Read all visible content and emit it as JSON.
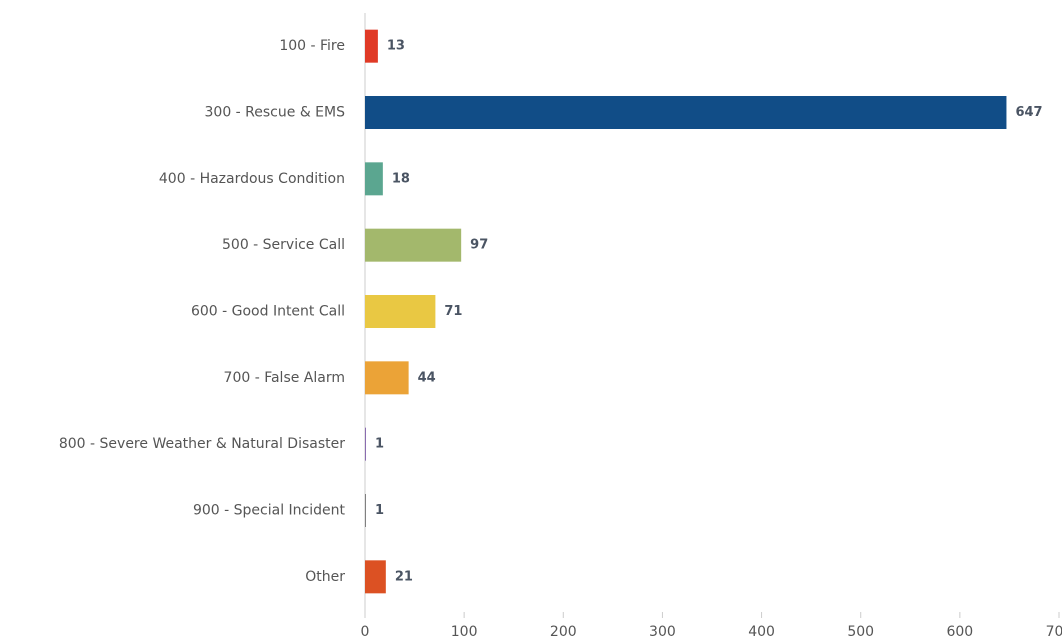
{
  "chart_data": {
    "type": "bar",
    "orientation": "horizontal",
    "categories": [
      "100 - Fire",
      "300 - Rescue & EMS",
      "400 - Hazardous Condition",
      "500 - Service Call",
      "600 - Good Intent Call",
      "700 - False Alarm",
      "800 - Severe Weather & Natural Disaster",
      "900 - Special Incident",
      "Other"
    ],
    "values": [
      13,
      647,
      18,
      97,
      71,
      44,
      1,
      1,
      21
    ],
    "colors": [
      "#e03a26",
      "#114d87",
      "#5ba690",
      "#a3b86c",
      "#e9c843",
      "#eba337",
      "#8a6bb0",
      "#7f7f7f",
      "#dc5123"
    ],
    "xlim": [
      0,
      700
    ],
    "xticks": [
      0,
      100,
      200,
      300,
      400,
      500,
      600,
      700
    ],
    "grid": false
  }
}
